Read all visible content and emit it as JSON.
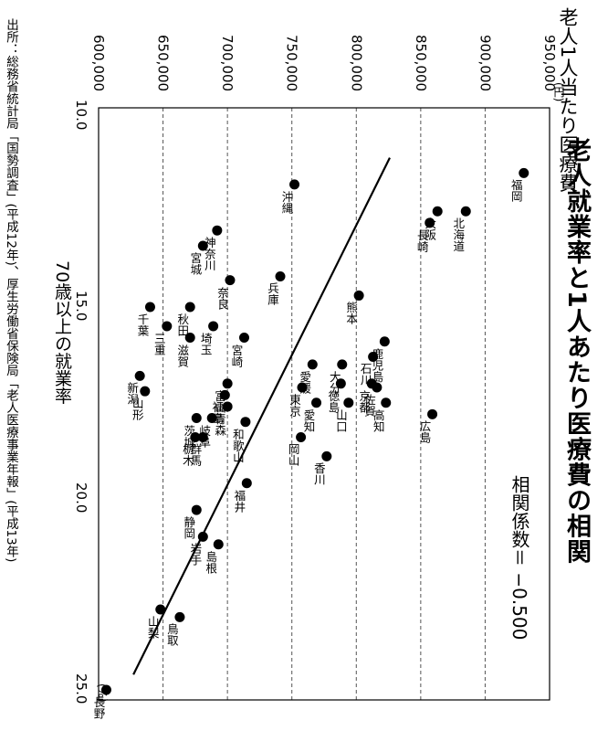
{
  "chart_data": {
    "type": "scatter",
    "title": "老人就業率と1人あたり医療費の相関",
    "annotation": "相関係数＝ −0.500",
    "xlabel": "70歳以上の就業率",
    "x_unit": "(%)",
    "ylabel": "老人1人当たり医療費",
    "y_unit": "(円)",
    "source": "出所：総務省統計局「国勢調査」(平成12年)、厚生労働省保険局「老人医療事業年報」(平成13年)",
    "xlim": [
      10.0,
      25.0
    ],
    "ylim": [
      600000,
      950000
    ],
    "x_ticks": [
      "10.0",
      "15.0",
      "20.0",
      "25.0"
    ],
    "y_ticks": [
      "600,000",
      "650,000",
      "700,000",
      "750,000",
      "800,000",
      "850,000",
      "900,000",
      "950,000"
    ],
    "grid": "horizontal dashed",
    "trendline": {
      "x": [
        11.1,
        24.6
      ],
      "y": [
        826000,
        627000
      ]
    },
    "series": [
      {
        "values": [
          {
            "label": "福岡",
            "x": 11.5,
            "y": 930000
          },
          {
            "label": "北海道",
            "x": 12.5,
            "y": 885000
          },
          {
            "label": "大阪",
            "x": 12.5,
            "y": 863000
          },
          {
            "label": "長崎",
            "x": 12.8,
            "y": 857000
          },
          {
            "label": "沖縄",
            "x": 11.8,
            "y": 752000
          },
          {
            "label": "神奈川",
            "x": 13.0,
            "y": 692000
          },
          {
            "label": "兵庫",
            "x": 14.2,
            "y": 741000
          },
          {
            "label": "宮城",
            "x": 13.4,
            "y": 681000
          },
          {
            "label": "熊本",
            "x": 14.7,
            "y": 802000
          },
          {
            "label": "奈良",
            "x": 14.3,
            "y": 702000
          },
          {
            "label": "秋田",
            "x": 15.0,
            "y": 671000
          },
          {
            "label": "千葉",
            "x": 15.0,
            "y": 640000
          },
          {
            "label": "三重",
            "x": 15.5,
            "y": 653000
          },
          {
            "label": "埼玉",
            "x": 15.5,
            "y": 689000
          },
          {
            "label": "滋賀",
            "x": 15.8,
            "y": 671000
          },
          {
            "label": "宮崎",
            "x": 15.8,
            "y": 713000
          },
          {
            "label": "鹿児島",
            "x": 15.9,
            "y": 822000
          },
          {
            "label": "石川",
            "x": 16.3,
            "y": 813000
          },
          {
            "label": "大分",
            "x": 16.5,
            "y": 789000
          },
          {
            "label": "愛媛",
            "x": 16.5,
            "y": 766000
          },
          {
            "label": "京都",
            "x": 17.0,
            "y": 812000
          },
          {
            "label": "徳島",
            "x": 17.0,
            "y": 788000
          },
          {
            "label": "佐賀",
            "x": 17.1,
            "y": 816000
          },
          {
            "label": "東京",
            "x": 17.1,
            "y": 758000
          },
          {
            "label": "富山",
            "x": 17.0,
            "y": 700000
          },
          {
            "label": "福島",
            "x": 17.3,
            "y": 698000
          },
          {
            "label": "新潟",
            "x": 16.8,
            "y": 632000
          },
          {
            "label": "山形",
            "x": 17.2,
            "y": 636000
          },
          {
            "label": "愛知",
            "x": 17.5,
            "y": 769000
          },
          {
            "label": "山口",
            "x": 17.5,
            "y": 794000
          },
          {
            "label": "高知",
            "x": 17.5,
            "y": 823000
          },
          {
            "label": "広島",
            "x": 17.8,
            "y": 859000
          },
          {
            "label": "和歌山",
            "x": 18.0,
            "y": 714000
          },
          {
            "label": "青森",
            "x": 17.6,
            "y": 700000
          },
          {
            "label": "茨城",
            "x": 17.9,
            "y": 676000
          },
          {
            "label": "岐阜",
            "x": 17.9,
            "y": 688000
          },
          {
            "label": "岡山",
            "x": 18.4,
            "y": 757000
          },
          {
            "label": "群馬",
            "x": 18.4,
            "y": 681000
          },
          {
            "label": "栃木",
            "x": 18.4,
            "y": 675000
          },
          {
            "label": "香川",
            "x": 18.9,
            "y": 777000
          },
          {
            "label": "福井",
            "x": 19.6,
            "y": 715000
          },
          {
            "label": "静岡",
            "x": 20.3,
            "y": 676000
          },
          {
            "label": "岩手",
            "x": 21.0,
            "y": 681000
          },
          {
            "label": "島根",
            "x": 21.2,
            "y": 693000
          },
          {
            "label": "山梨",
            "x": 22.9,
            "y": 648000
          },
          {
            "label": "鳥取",
            "x": 23.1,
            "y": 663000
          },
          {
            "label": "長野",
            "x": 25.0,
            "y": 606000
          }
        ]
      }
    ]
  }
}
